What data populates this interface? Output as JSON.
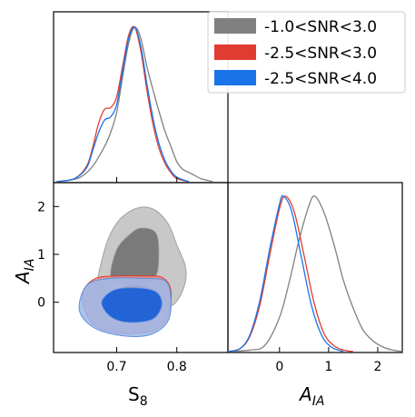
{
  "chart_data": {
    "type": "triangle-corner",
    "xlabel_s8": "S",
    "xlabel_s8_sub": "8",
    "label_aia": "A",
    "label_aia_sub": "IA",
    "s8_range": [
      0.595,
      0.885
    ],
    "aia_range": [
      -1.05,
      2.5
    ],
    "s8_ticks": [
      "0.7",
      "0.8"
    ],
    "s8_tick_values": [
      0.7,
      0.8
    ],
    "aia_ticks": [
      "0",
      "1",
      "2"
    ],
    "aia_tick_values": [
      0,
      1,
      2
    ],
    "legend_position": "top-right",
    "series": [
      {
        "name": "-1.0<SNR<3.0",
        "color": "#808080",
        "s8_peak": 0.73,
        "aia_peak": 0.72,
        "s8_curve": [
          [
            0.6,
            0.0
          ],
          [
            0.62,
            0.01
          ],
          [
            0.64,
            0.03
          ],
          [
            0.66,
            0.1
          ],
          [
            0.68,
            0.23
          ],
          [
            0.69,
            0.32
          ],
          [
            0.7,
            0.45
          ],
          [
            0.71,
            0.68
          ],
          [
            0.72,
            0.9
          ],
          [
            0.73,
            1.0
          ],
          [
            0.74,
            0.93
          ],
          [
            0.75,
            0.75
          ],
          [
            0.76,
            0.6
          ],
          [
            0.77,
            0.46
          ],
          [
            0.78,
            0.33
          ],
          [
            0.79,
            0.23
          ],
          [
            0.8,
            0.13
          ],
          [
            0.81,
            0.08
          ],
          [
            0.82,
            0.06
          ],
          [
            0.83,
            0.04
          ],
          [
            0.84,
            0.02
          ],
          [
            0.86,
            0.0
          ]
        ],
        "aia_curve": [
          [
            -1.05,
            0.0
          ],
          [
            -0.6,
            0.01
          ],
          [
            -0.3,
            0.04
          ],
          [
            0.0,
            0.22
          ],
          [
            0.2,
            0.45
          ],
          [
            0.4,
            0.72
          ],
          [
            0.6,
            0.94
          ],
          [
            0.72,
            1.0
          ],
          [
            0.9,
            0.9
          ],
          [
            1.1,
            0.7
          ],
          [
            1.3,
            0.46
          ],
          [
            1.5,
            0.28
          ],
          [
            1.7,
            0.14
          ],
          [
            1.9,
            0.07
          ],
          [
            2.1,
            0.03
          ],
          [
            2.3,
            0.01
          ],
          [
            2.5,
            0.0
          ]
        ]
      },
      {
        "name": "-2.5<SNR<3.0",
        "color": "#e03c31",
        "s8_peak": 0.728,
        "aia_peak": 0.12,
        "s8_curve": [
          [
            0.6,
            0.0
          ],
          [
            0.63,
            0.02
          ],
          [
            0.65,
            0.1
          ],
          [
            0.66,
            0.22
          ],
          [
            0.67,
            0.38
          ],
          [
            0.68,
            0.47
          ],
          [
            0.69,
            0.48
          ],
          [
            0.7,
            0.55
          ],
          [
            0.71,
            0.75
          ],
          [
            0.72,
            0.95
          ],
          [
            0.73,
            1.0
          ],
          [
            0.74,
            0.85
          ],
          [
            0.75,
            0.6
          ],
          [
            0.76,
            0.38
          ],
          [
            0.77,
            0.22
          ],
          [
            0.78,
            0.12
          ],
          [
            0.79,
            0.06
          ],
          [
            0.8,
            0.02
          ],
          [
            0.82,
            0.0
          ]
        ],
        "aia_curve": [
          [
            -1.05,
            0.0
          ],
          [
            -0.8,
            0.02
          ],
          [
            -0.6,
            0.1
          ],
          [
            -0.4,
            0.3
          ],
          [
            -0.2,
            0.62
          ],
          [
            0.0,
            0.92
          ],
          [
            0.12,
            1.0
          ],
          [
            0.3,
            0.9
          ],
          [
            0.5,
            0.62
          ],
          [
            0.7,
            0.32
          ],
          [
            0.9,
            0.12
          ],
          [
            1.1,
            0.04
          ],
          [
            1.3,
            0.01
          ],
          [
            1.5,
            0.0
          ]
        ]
      },
      {
        "name": "-2.5<SNR<4.0",
        "color": "#1a73e8",
        "s8_peak": 0.731,
        "aia_peak": 0.08,
        "s8_curve": [
          [
            0.6,
            0.0
          ],
          [
            0.63,
            0.02
          ],
          [
            0.65,
            0.09
          ],
          [
            0.66,
            0.2
          ],
          [
            0.67,
            0.32
          ],
          [
            0.68,
            0.4
          ],
          [
            0.69,
            0.42
          ],
          [
            0.7,
            0.5
          ],
          [
            0.71,
            0.72
          ],
          [
            0.72,
            0.93
          ],
          [
            0.73,
            1.0
          ],
          [
            0.74,
            0.88
          ],
          [
            0.75,
            0.64
          ],
          [
            0.76,
            0.42
          ],
          [
            0.77,
            0.25
          ],
          [
            0.78,
            0.14
          ],
          [
            0.79,
            0.07
          ],
          [
            0.8,
            0.03
          ],
          [
            0.82,
            0.0
          ]
        ],
        "aia_curve": [
          [
            -1.05,
            0.0
          ],
          [
            -0.8,
            0.02
          ],
          [
            -0.6,
            0.11
          ],
          [
            -0.4,
            0.33
          ],
          [
            -0.2,
            0.66
          ],
          [
            0.0,
            0.95
          ],
          [
            0.08,
            1.0
          ],
          [
            0.25,
            0.9
          ],
          [
            0.45,
            0.6
          ],
          [
            0.65,
            0.3
          ],
          [
            0.85,
            0.11
          ],
          [
            1.05,
            0.03
          ],
          [
            1.3,
            0.0
          ]
        ]
      }
    ],
    "contours_2d": [
      {
        "series": "-1.0<SNR<3.0",
        "outer_fill": "#c8c8c8",
        "inner_fill": "#7a7a7a",
        "edge": "#a0a0a0",
        "outer": [
          [
            0.665,
            0.15
          ],
          [
            0.68,
            1.1
          ],
          [
            0.7,
            1.65
          ],
          [
            0.73,
            1.95
          ],
          [
            0.76,
            1.95
          ],
          [
            0.785,
            1.65
          ],
          [
            0.8,
            1.2
          ],
          [
            0.815,
            0.7
          ],
          [
            0.81,
            0.25
          ],
          [
            0.79,
            -0.08
          ],
          [
            0.76,
            0.05
          ],
          [
            0.73,
            0.25
          ],
          [
            0.69,
            0.45
          ],
          [
            0.665,
            0.15
          ]
        ],
        "inner": [
          [
            0.69,
            0.55
          ],
          [
            0.7,
            1.1
          ],
          [
            0.72,
            1.4
          ],
          [
            0.74,
            1.55
          ],
          [
            0.765,
            1.45
          ],
          [
            0.77,
            1.0
          ],
          [
            0.765,
            0.55
          ],
          [
            0.74,
            0.35
          ],
          [
            0.71,
            0.4
          ],
          [
            0.69,
            0.55
          ]
        ]
      },
      {
        "series": "-2.5<SNR<3.0",
        "outer_fill": "#f08e86",
        "inner_fill": "#e03c31",
        "edge": "#e03c31",
        "outer": [
          [
            0.645,
            0.25
          ],
          [
            0.665,
            0.5
          ],
          [
            0.7,
            0.55
          ],
          [
            0.74,
            0.55
          ],
          [
            0.775,
            0.52
          ],
          [
            0.79,
            0.25
          ],
          [
            0.785,
            -0.3
          ],
          [
            0.76,
            -0.6
          ],
          [
            0.71,
            -0.65
          ],
          [
            0.665,
            -0.5
          ],
          [
            0.645,
            -0.1
          ],
          [
            0.645,
            0.25
          ]
        ],
        "inner": [
          [
            0.685,
            0.0
          ],
          [
            0.7,
            0.25
          ],
          [
            0.73,
            0.35
          ],
          [
            0.76,
            0.25
          ],
          [
            0.77,
            0.0
          ],
          [
            0.76,
            -0.3
          ],
          [
            0.72,
            -0.4
          ],
          [
            0.69,
            -0.25
          ],
          [
            0.685,
            0.0
          ]
        ]
      },
      {
        "series": "-2.5<SNR<4.0",
        "outer_fill": "#9bb8ea",
        "inner_fill": "#1a5fd6",
        "edge": "#5f8fe0",
        "outer": [
          [
            0.64,
            0.1
          ],
          [
            0.655,
            0.4
          ],
          [
            0.69,
            0.5
          ],
          [
            0.74,
            0.5
          ],
          [
            0.78,
            0.45
          ],
          [
            0.79,
            0.1
          ],
          [
            0.785,
            -0.4
          ],
          [
            0.755,
            -0.68
          ],
          [
            0.71,
            -0.7
          ],
          [
            0.665,
            -0.55
          ],
          [
            0.64,
            -0.25
          ],
          [
            0.64,
            0.1
          ]
        ],
        "inner": [
          [
            0.675,
            0.0
          ],
          [
            0.695,
            0.25
          ],
          [
            0.73,
            0.3
          ],
          [
            0.765,
            0.22
          ],
          [
            0.775,
            -0.05
          ],
          [
            0.76,
            -0.35
          ],
          [
            0.72,
            -0.42
          ],
          [
            0.69,
            -0.3
          ],
          [
            0.675,
            0.0
          ]
        ]
      }
    ]
  }
}
